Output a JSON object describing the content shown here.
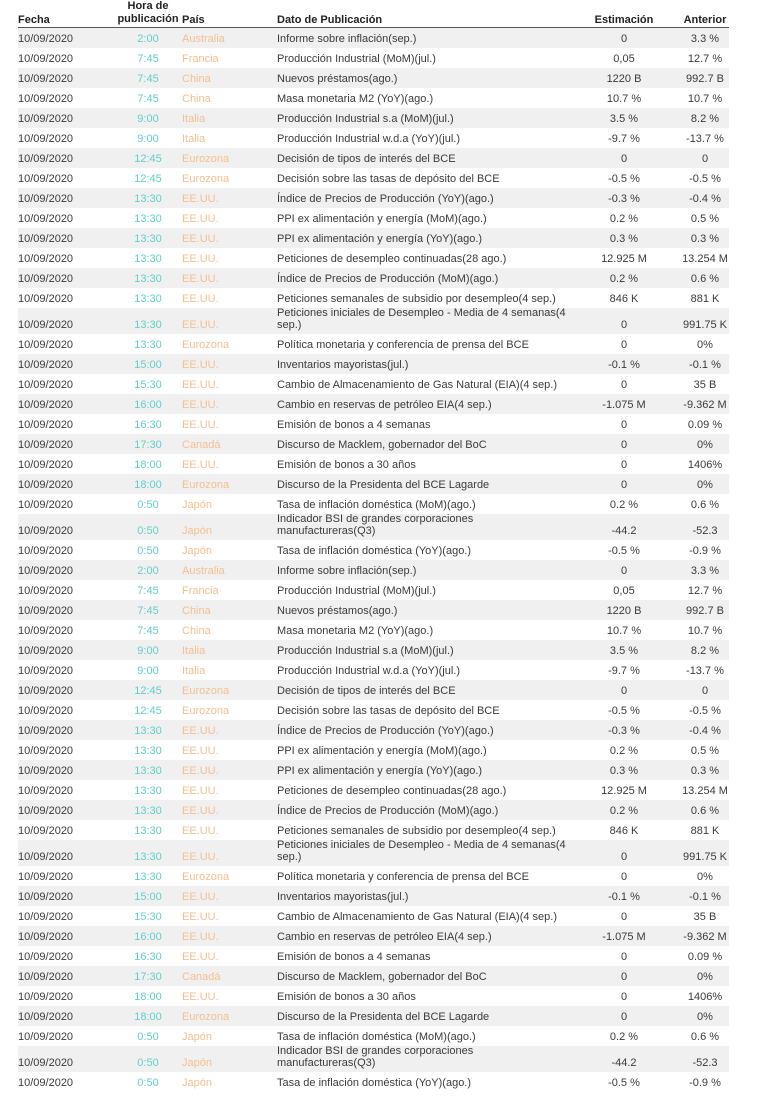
{
  "header": {
    "date": "Fecha",
    "time": "Hora de publicación",
    "country": "País",
    "description": "Dato de Publicación",
    "estimate": "Estimación",
    "previous": "Anterior"
  },
  "colors": {
    "time": "#5fcfc9",
    "country": "#f5bf8f",
    "row_stripe": "#f0f0f0"
  },
  "rows": [
    [
      "10/09/2020",
      "2:00",
      "Australia",
      "Informe sobre inflación(sep.)",
      "0",
      "3.3 %"
    ],
    [
      "10/09/2020",
      "7:45",
      "Francia",
      "Producción Industrial (MoM)(jul.)",
      "0,05",
      "12.7 %"
    ],
    [
      "10/09/2020",
      "7:45",
      "China",
      "Nuevos préstamos(ago.)",
      "1220 B",
      "992.7 B"
    ],
    [
      "10/09/2020",
      "7:45",
      "China",
      "Masa monetaria M2 (YoY)(ago.)",
      "10.7 %",
      "10.7 %"
    ],
    [
      "10/09/2020",
      "9:00",
      "Italia",
      "Producción Industrial s.a (MoM)(jul.)",
      "3.5 %",
      "8.2 %"
    ],
    [
      "10/09/2020",
      "9:00",
      "Italia",
      "Producción Industrial w.d.a (YoY)(jul.)",
      "-9.7 %",
      "-13.7 %"
    ],
    [
      "10/09/2020",
      "12:45",
      "Eurozona",
      "Decisión de tipos de interés del BCE",
      "0",
      "0"
    ],
    [
      "10/09/2020",
      "12:45",
      "Eurozona",
      "Decisión sobre las tasas de depósito del BCE",
      "-0.5 %",
      "-0.5 %"
    ],
    [
      "10/09/2020",
      "13:30",
      "EE.UU.",
      "Índice de Precios de Producción (YoY)(ago.)",
      "-0.3 %",
      "-0.4 %"
    ],
    [
      "10/09/2020",
      "13:30",
      "EE.UU.",
      "PPI ex alimentación y energía (MoM)(ago.)",
      "0.2 %",
      "0.5 %"
    ],
    [
      "10/09/2020",
      "13:30",
      "EE.UU.",
      "PPI ex alimentación y energía (YoY)(ago.)",
      "0.3 %",
      "0.3 %"
    ],
    [
      "10/09/2020",
      "13:30",
      "EE.UU.",
      "Peticiones de desempleo continuadas(28 ago.)",
      "12.925 M",
      "13.254 M"
    ],
    [
      "10/09/2020",
      "13:30",
      "EE.UU.",
      "Índice de Precios de Producción (MoM)(ago.)",
      "0.2 %",
      "0.6 %"
    ],
    [
      "10/09/2020",
      "13:30",
      "EE.UU.",
      "Peticiones semanales de subsidio por desempleo(4 sep.)",
      "846 K",
      "881 K"
    ],
    [
      "10/09/2020",
      "13:30",
      "EE.UU.",
      "Peticiones iniciales de Desempleo - Media de 4 semanas(4 sep.)",
      "0",
      "991.75 K"
    ],
    [
      "10/09/2020",
      "13:30",
      "Eurozona",
      "Política monetaria y conferencia de prensa del BCE",
      "0",
      "0%"
    ],
    [
      "10/09/2020",
      "15:00",
      "EE.UU.",
      "Inventarios mayoristas(jul.)",
      "-0.1 %",
      "-0.1 %"
    ],
    [
      "10/09/2020",
      "15:30",
      "EE.UU.",
      "Cambio de Almacenamiento de Gas Natural (EIA)(4 sep.)",
      "0",
      "35 B"
    ],
    [
      "10/09/2020",
      "16:00",
      "EE.UU.",
      "Cambio en reservas de petróleo EIA(4 sep.)",
      "-1.075 M",
      "-9.362 M"
    ],
    [
      "10/09/2020",
      "16:30",
      "EE.UU.",
      "Emisión de bonos a 4 semanas",
      "0",
      "0.09 %"
    ],
    [
      "10/09/2020",
      "17:30",
      "Canadá",
      "Discurso de Macklem, gobernador del BoC",
      "0",
      "0%"
    ],
    [
      "10/09/2020",
      "18:00",
      "EE.UU.",
      "Emisión de bonos a 30 años",
      "0",
      "1406%"
    ],
    [
      "10/09/2020",
      "18:00",
      "Eurozona",
      "Discurso de la Presidenta del BCE Lagarde",
      "0",
      "0%"
    ],
    [
      "10/09/2020",
      "0:50",
      "Japón",
      "Tasa de inflación doméstica (MoM)(ago.)",
      "0.2 %",
      "0.6 %"
    ],
    [
      "10/09/2020",
      "0:50",
      "Japón",
      "Indicador BSI de grandes corporaciones manufactureras(Q3)",
      "-44.2",
      "-52.3"
    ],
    [
      "10/09/2020",
      "0:50",
      "Japón",
      "Tasa de inflación doméstica (YoY)(ago.)",
      "-0.5 %",
      "-0.9 %"
    ],
    [
      "10/09/2020",
      "2:00",
      "Australia",
      "Informe sobre inflación(sep.)",
      "0",
      "3.3 %"
    ],
    [
      "10/09/2020",
      "7:45",
      "Francia",
      "Producción Industrial (MoM)(jul.)",
      "0,05",
      "12.7 %"
    ],
    [
      "10/09/2020",
      "7:45",
      "China",
      "Nuevos préstamos(ago.)",
      "1220 B",
      "992.7 B"
    ],
    [
      "10/09/2020",
      "7:45",
      "China",
      "Masa monetaria M2 (YoY)(ago.)",
      "10.7 %",
      "10.7 %"
    ],
    [
      "10/09/2020",
      "9:00",
      "Italia",
      "Producción Industrial s.a (MoM)(jul.)",
      "3.5 %",
      "8.2 %"
    ],
    [
      "10/09/2020",
      "9:00",
      "Italia",
      "Producción Industrial w.d.a (YoY)(jul.)",
      "-9.7 %",
      "-13.7 %"
    ],
    [
      "10/09/2020",
      "12:45",
      "Eurozona",
      "Decisión de tipos de interés del BCE",
      "0",
      "0"
    ],
    [
      "10/09/2020",
      "12:45",
      "Eurozona",
      "Decisión sobre las tasas de depósito del BCE",
      "-0.5 %",
      "-0.5 %"
    ],
    [
      "10/09/2020",
      "13:30",
      "EE.UU.",
      "Índice de Precios de Producción (YoY)(ago.)",
      "-0.3 %",
      "-0.4 %"
    ],
    [
      "10/09/2020",
      "13:30",
      "EE.UU.",
      "PPI ex alimentación y energía (MoM)(ago.)",
      "0.2 %",
      "0.5 %"
    ],
    [
      "10/09/2020",
      "13:30",
      "EE.UU.",
      "PPI ex alimentación y energía (YoY)(ago.)",
      "0.3 %",
      "0.3 %"
    ],
    [
      "10/09/2020",
      "13:30",
      "EE.UU.",
      "Peticiones de desempleo continuadas(28 ago.)",
      "12.925 M",
      "13.254 M"
    ],
    [
      "10/09/2020",
      "13:30",
      "EE.UU.",
      "Índice de Precios de Producción (MoM)(ago.)",
      "0.2 %",
      "0.6 %"
    ],
    [
      "10/09/2020",
      "13:30",
      "EE.UU.",
      "Peticiones semanales de subsidio por desempleo(4 sep.)",
      "846 K",
      "881 K"
    ],
    [
      "10/09/2020",
      "13:30",
      "EE.UU.",
      "Peticiones iniciales de Desempleo - Media de 4 semanas(4 sep.)",
      "0",
      "991.75 K"
    ],
    [
      "10/09/2020",
      "13:30",
      "Eurozona",
      "Política monetaria y conferencia de prensa del BCE",
      "0",
      "0%"
    ],
    [
      "10/09/2020",
      "15:00",
      "EE.UU.",
      "Inventarios mayoristas(jul.)",
      "-0.1 %",
      "-0.1 %"
    ],
    [
      "10/09/2020",
      "15:30",
      "EE.UU.",
      "Cambio de Almacenamiento de Gas Natural (EIA)(4 sep.)",
      "0",
      "35 B"
    ],
    [
      "10/09/2020",
      "16:00",
      "EE.UU.",
      "Cambio en reservas de petróleo EIA(4 sep.)",
      "-1.075 M",
      "-9.362 M"
    ],
    [
      "10/09/2020",
      "16:30",
      "EE.UU.",
      "Emisión de bonos a 4 semanas",
      "0",
      "0.09 %"
    ],
    [
      "10/09/2020",
      "17:30",
      "Canadá",
      "Discurso de Macklem, gobernador del BoC",
      "0",
      "0%"
    ],
    [
      "10/09/2020",
      "18:00",
      "EE.UU.",
      "Emisión de bonos a 30 años",
      "0",
      "1406%"
    ],
    [
      "10/09/2020",
      "18:00",
      "Eurozona",
      "Discurso de la Presidenta del BCE Lagarde",
      "0",
      "0%"
    ],
    [
      "10/09/2020",
      "0:50",
      "Japón",
      "Tasa de inflación doméstica (MoM)(ago.)",
      "0.2 %",
      "0.6 %"
    ],
    [
      "10/09/2020",
      "0:50",
      "Japón",
      "Indicador BSI de grandes corporaciones manufactureras(Q3)",
      "-44.2",
      "-52.3"
    ],
    [
      "10/09/2020",
      "0:50",
      "Japón",
      "Tasa de inflación doméstica (YoY)(ago.)",
      "-0.5 %",
      "-0.9 %"
    ]
  ]
}
